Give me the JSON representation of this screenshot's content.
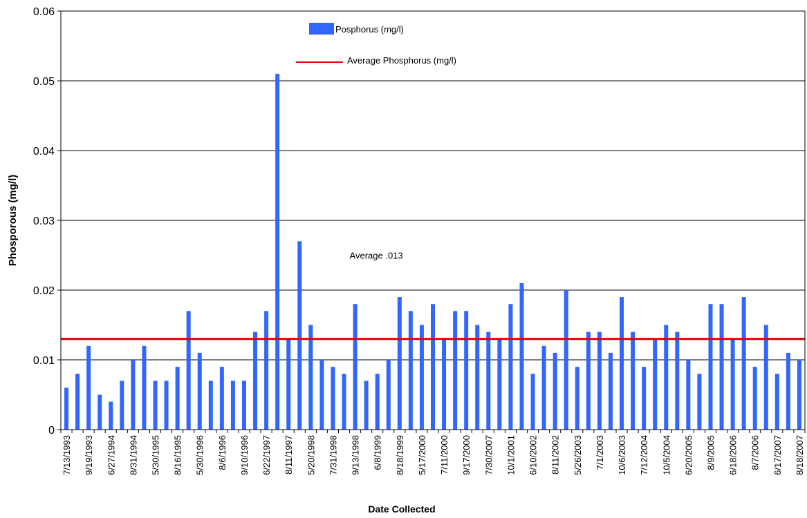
{
  "chart_data": {
    "type": "bar",
    "xlabel": "Date Collected",
    "ylabel": "Phosporous (mg/l)",
    "ylim": [
      0,
      0.06
    ],
    "yticks": [
      "0",
      "0.01",
      "0.02",
      "0.03",
      "0.04",
      "0.05",
      "0.06"
    ],
    "grid": true,
    "legend_position": "top-center",
    "categories": [
      "7/13/1993",
      "",
      "9/19/1993",
      "",
      "6/27/1994",
      "",
      "8/31/1994",
      "",
      "5/30/1995",
      "",
      "8/16/1995",
      "",
      "5/30/1996",
      "",
      "8/6/1996",
      "",
      "9/10/1996",
      "",
      "6/22/1997",
      "",
      "8/11/1997",
      "",
      "5/20/1998",
      "",
      "7/31/1998",
      "",
      "9/13/1998",
      "",
      "6/8/1999",
      "",
      "8/18/1999",
      "",
      "5/17/2000",
      "",
      "7/11/2000",
      "",
      "9/17/2000",
      "",
      "7/30/2007",
      "",
      "10/1/2001",
      "",
      "6/10/2002",
      "",
      "8/11/2002",
      "",
      "5/26/2003",
      "",
      "7/1/2003",
      "",
      "10/6/2003",
      "",
      "7/12/2004",
      "",
      "10/5/2004",
      "",
      "6/20/2005",
      "",
      "8/9/2005",
      "",
      "6/18/2006",
      "",
      "8/7/2006",
      "",
      "6/17/2007",
      "",
      "8/18/2007"
    ],
    "series": [
      {
        "name": "Posphorus (mg/l)",
        "type": "bar",
        "color": "#3366ff",
        "values": [
          0.006,
          0.008,
          0.012,
          0.005,
          0.004,
          0.007,
          0.01,
          0.012,
          0.007,
          0.007,
          0.009,
          0.017,
          0.011,
          0.007,
          0.009,
          0.007,
          0.007,
          0.014,
          0.017,
          0.051,
          0.013,
          0.027,
          0.015,
          0.01,
          0.009,
          0.008,
          0.018,
          0.007,
          0.008,
          0.01,
          0.019,
          0.017,
          0.015,
          0.018,
          0.013,
          0.017,
          0.017,
          0.015,
          0.014,
          0.013,
          0.018,
          0.021,
          0.008,
          0.012,
          0.011,
          0.02,
          0.009,
          0.014,
          0.014,
          0.011,
          0.019,
          0.014,
          0.009,
          0.013,
          0.015,
          0.014,
          0.01,
          0.008,
          0.018,
          0.018,
          0.013,
          0.019,
          0.009,
          0.015,
          0.008,
          0.011,
          0.01
        ]
      },
      {
        "name": "Average Phosphorus (mg/l)",
        "type": "line",
        "color": "#e00000",
        "value": 0.013
      }
    ],
    "annotations": [
      {
        "text": "Average .013",
        "x_index": 25.5,
        "y": 0.0245
      }
    ]
  }
}
